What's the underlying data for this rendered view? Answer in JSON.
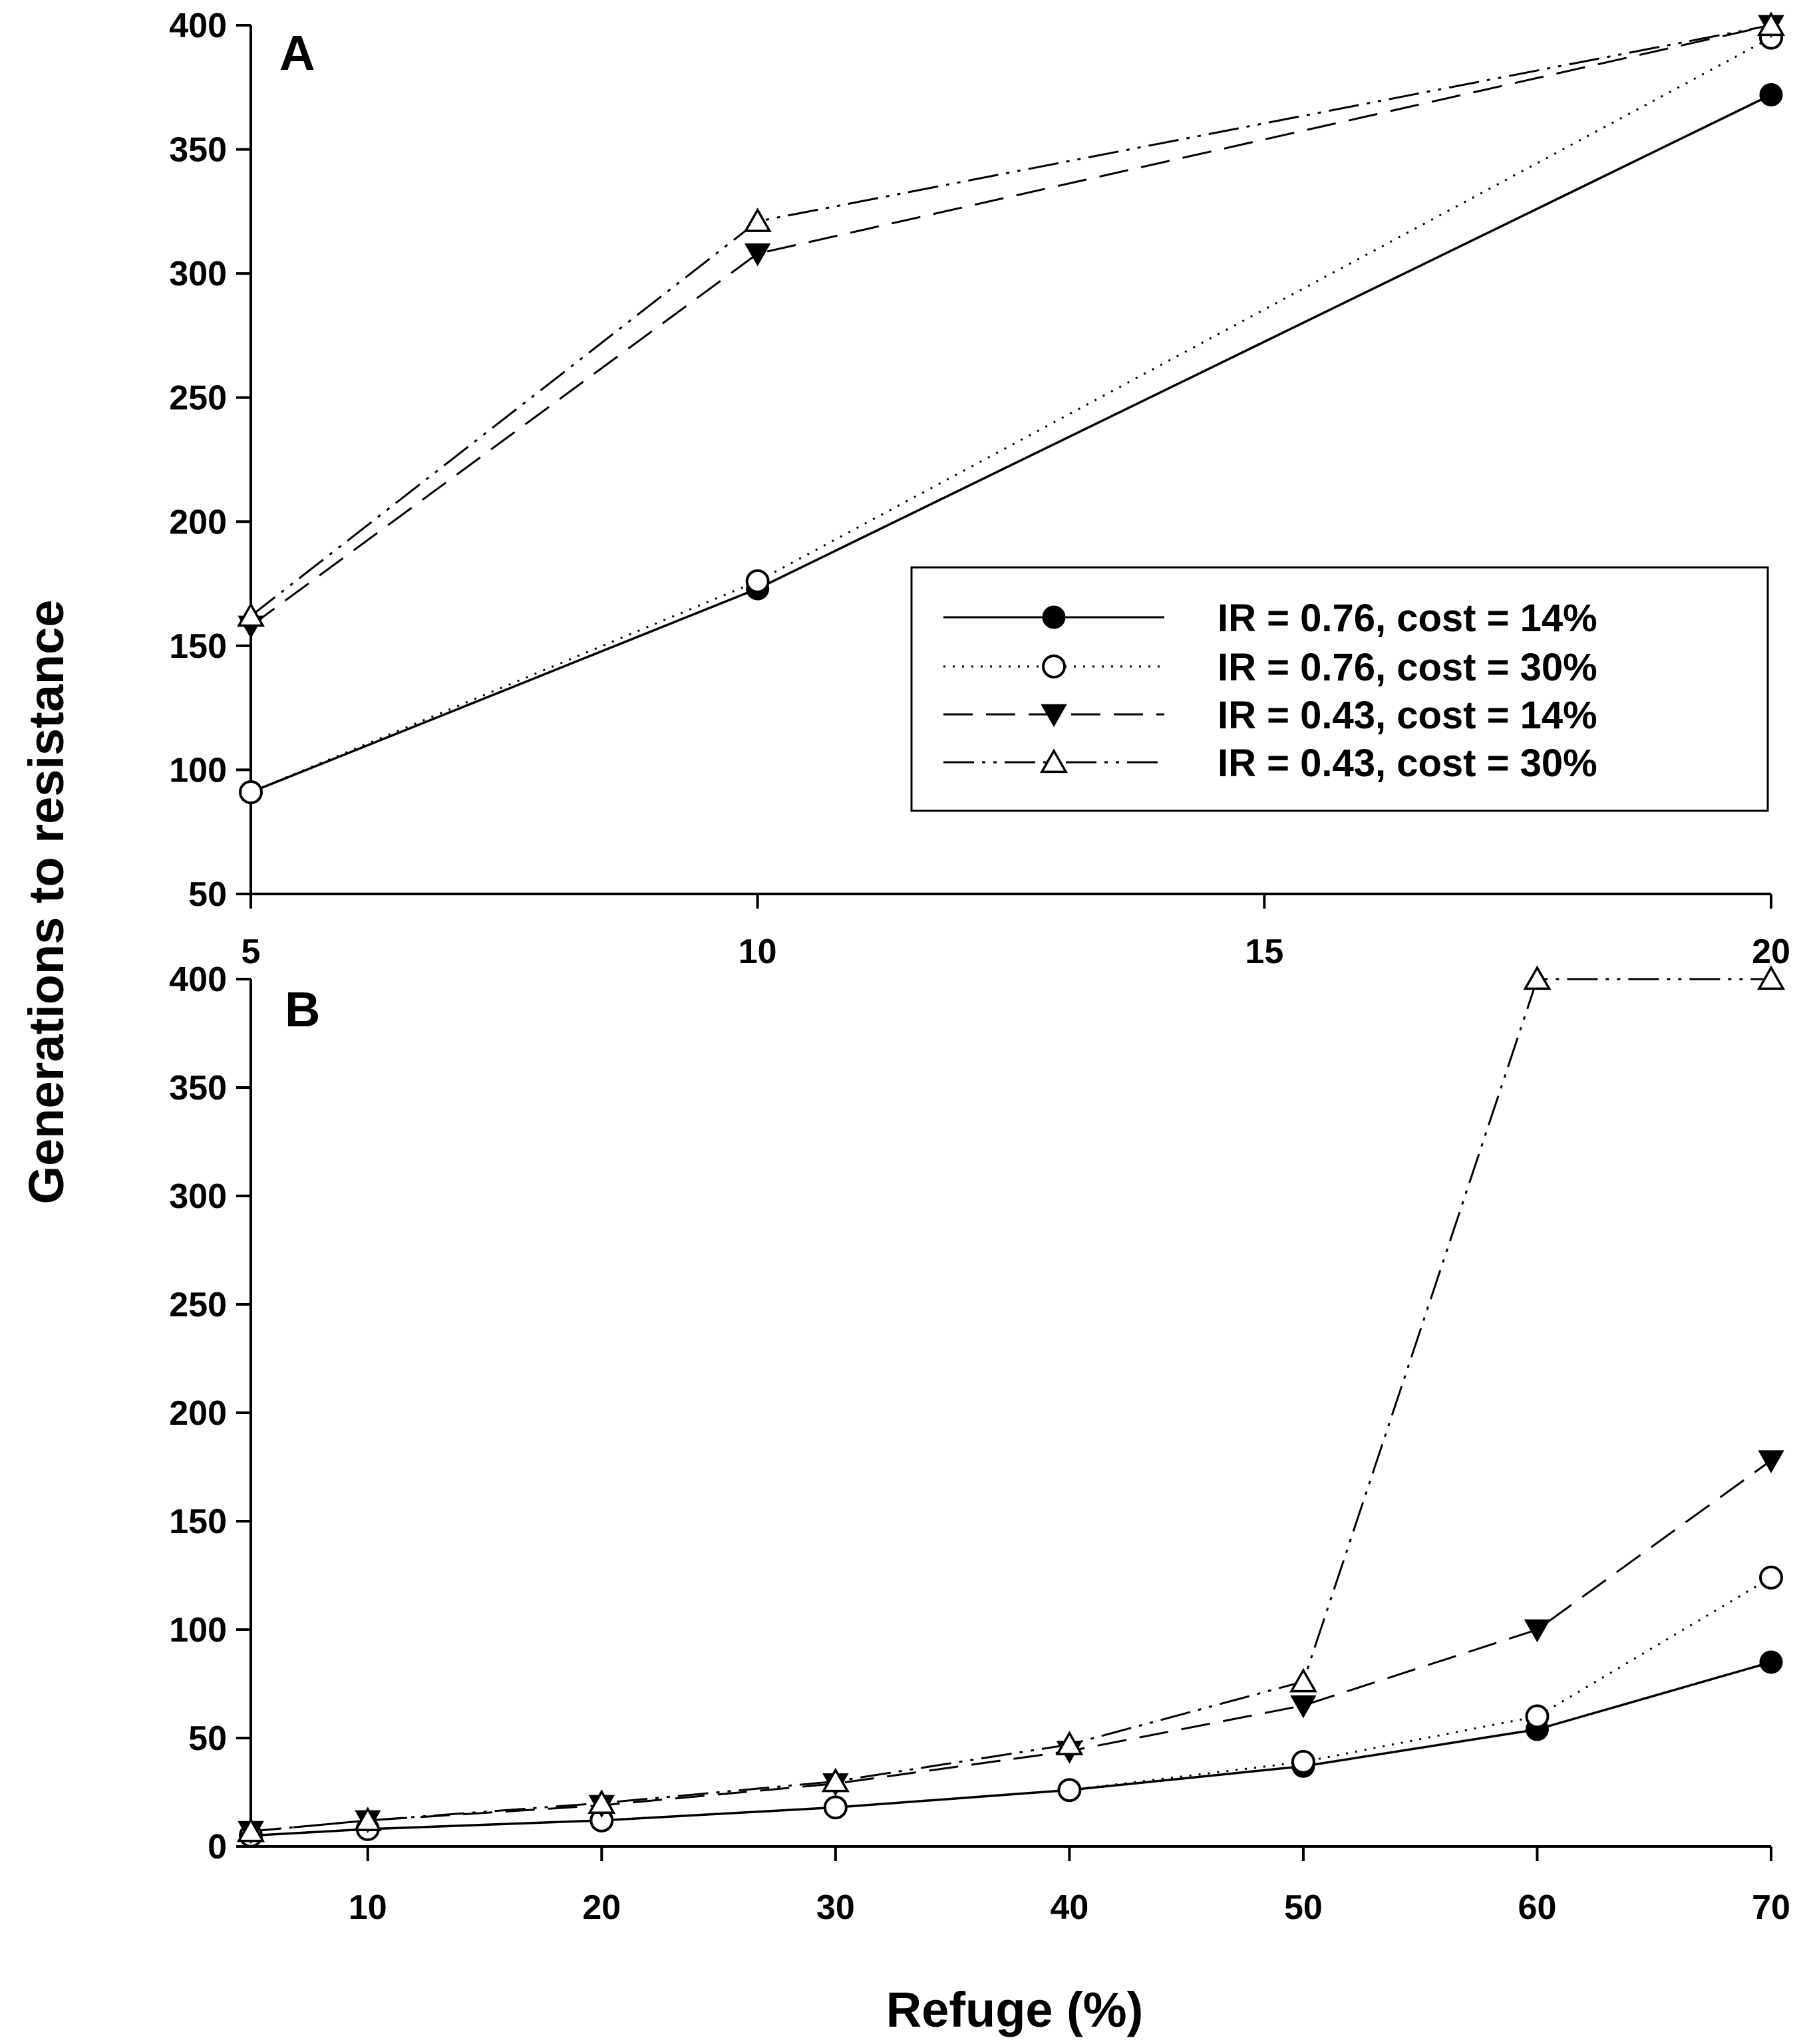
{
  "ylabel": "Generations to resistance",
  "xlabel": "Refuge (%)",
  "colors": {
    "line": "#000000",
    "background": "#ffffff"
  },
  "legend": {
    "placement": "center-right",
    "entries": [
      {
        "label": "IR = 0.76, cost = 14%",
        "marker": "filled-circle",
        "dash": "solid"
      },
      {
        "label": "IR = 0.76, cost = 30%",
        "marker": "open-circle",
        "dash": "dotted"
      },
      {
        "label": "IR = 0.43, cost = 14%",
        "marker": "filled-triangle-down",
        "dash": "long-dash"
      },
      {
        "label": "IR = 0.43, cost = 30%",
        "marker": "open-triangle-up",
        "dash": "dash-dot-dot"
      }
    ]
  },
  "chart_data": [
    {
      "type": "line",
      "panel_label": "A",
      "x": [
        5,
        10,
        20
      ],
      "xlim": [
        5,
        20
      ],
      "ylim": [
        50,
        400
      ],
      "xticks": [
        5,
        10,
        15,
        20
      ],
      "yticks": [
        50,
        100,
        150,
        200,
        250,
        300,
        350,
        400
      ],
      "series": [
        {
          "name": "IR = 0.76, cost = 14%",
          "values": [
            91,
            173,
            372
          ]
        },
        {
          "name": "IR = 0.76, cost = 30%",
          "values": [
            91,
            176,
            395
          ]
        },
        {
          "name": "IR = 0.43, cost = 14%",
          "values": [
            158,
            308,
            400
          ]
        },
        {
          "name": "IR = 0.43, cost = 30%",
          "values": [
            162,
            321,
            400
          ]
        }
      ]
    },
    {
      "type": "line",
      "panel_label": "B",
      "x": [
        5,
        10,
        20,
        30,
        40,
        50,
        60,
        70
      ],
      "xlim": [
        5,
        70
      ],
      "ylim": [
        0,
        400
      ],
      "xticks": [
        10,
        20,
        30,
        40,
        50,
        60,
        70
      ],
      "yticks": [
        0,
        50,
        100,
        150,
        200,
        250,
        300,
        350,
        400
      ],
      "series": [
        {
          "name": "IR = 0.76, cost = 14%",
          "values": [
            5,
            8,
            12,
            18,
            26,
            37,
            54,
            85
          ]
        },
        {
          "name": "IR = 0.76, cost = 30%",
          "values": [
            5,
            8,
            12,
            18,
            26,
            39,
            60,
            124
          ]
        },
        {
          "name": "IR = 0.43, cost = 14%",
          "values": [
            7,
            12,
            19,
            29,
            44,
            65,
            100,
            178
          ]
        },
        {
          "name": "IR = 0.43, cost = 30%",
          "values": [
            7,
            12,
            20,
            30,
            47,
            76,
            400,
            400
          ]
        }
      ]
    }
  ]
}
